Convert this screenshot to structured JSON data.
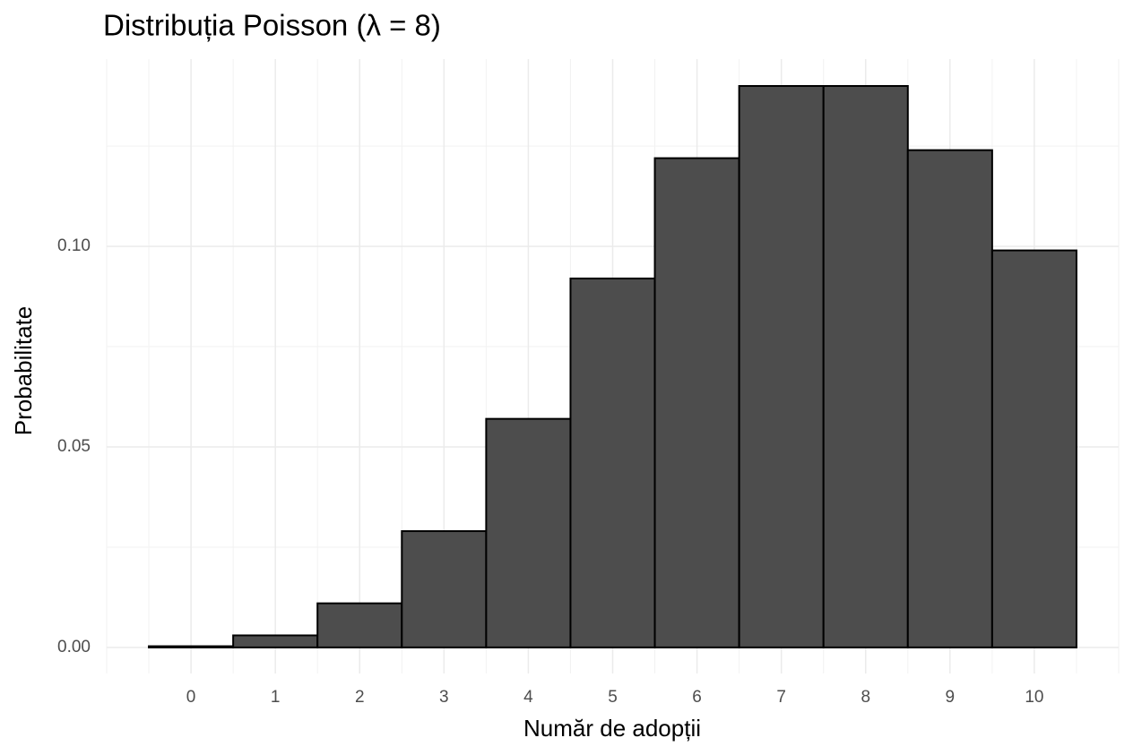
{
  "chart_data": {
    "type": "bar",
    "title": "Distribuția Poisson (λ = 8)",
    "x_label": "Număr de adopții",
    "y_label": "Probabilitate",
    "x": [
      0,
      1,
      2,
      3,
      4,
      5,
      6,
      7,
      8,
      9,
      10
    ],
    "values": [
      0.0003,
      0.003,
      0.011,
      0.029,
      0.057,
      0.092,
      0.122,
      0.14,
      0.14,
      0.124,
      0.099
    ],
    "color": "#4d4d4d",
    "xlim": [
      -1,
      11
    ],
    "xticks": [
      0,
      1,
      2,
      3,
      4,
      5,
      6,
      7,
      8,
      9,
      10
    ],
    "ylim": [
      -0.0065,
      0.1467
    ],
    "yticks": [
      {
        "value": 0,
        "label": "0.00"
      },
      {
        "value": 0.05,
        "label": "0.05"
      },
      {
        "value": 0.1,
        "label": "0.10"
      }
    ],
    "grid": true
  }
}
